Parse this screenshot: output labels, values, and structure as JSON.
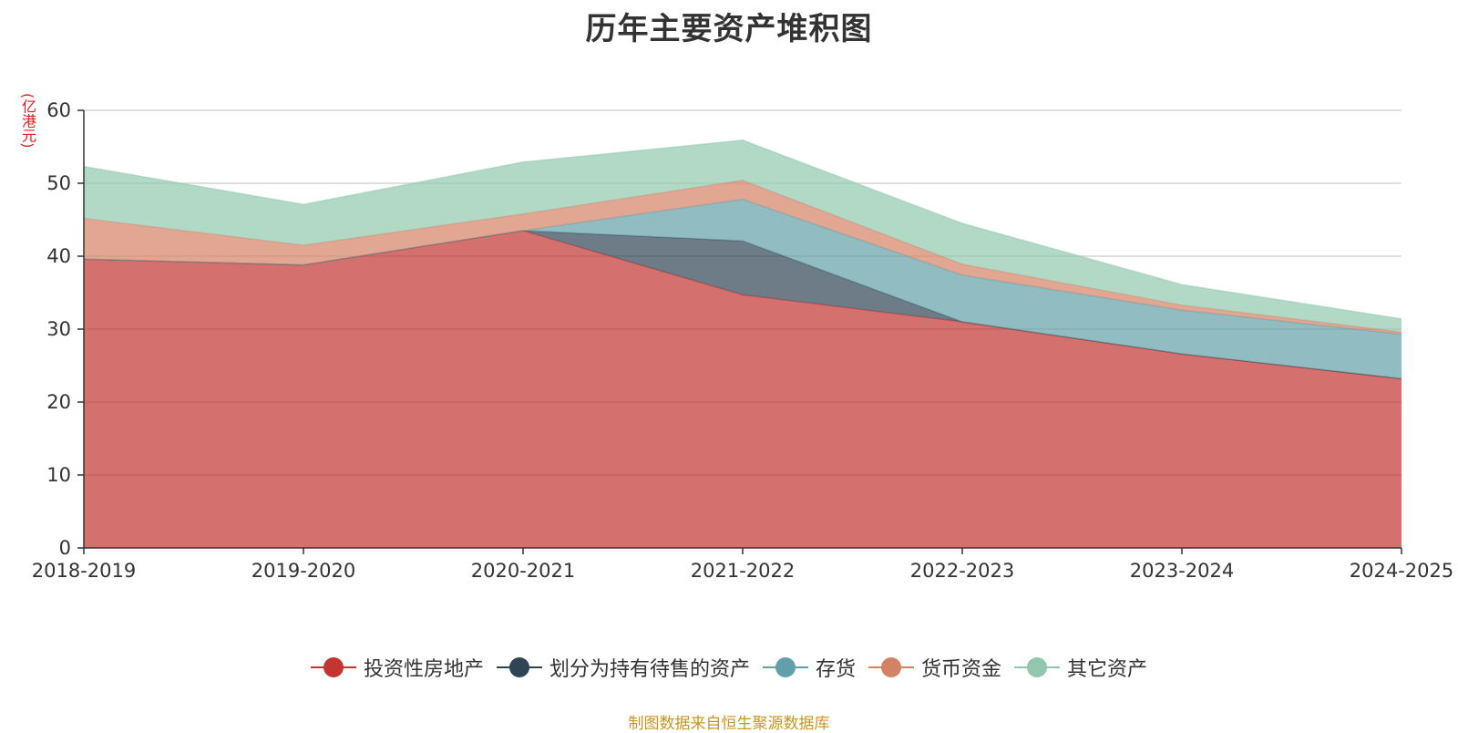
{
  "chart_data": {
    "type": "area",
    "stacked": true,
    "title": "历年主要资产堆积图",
    "ylabel": "(亿港元)",
    "ylim": [
      0,
      60
    ],
    "yticks": [
      0,
      10,
      20,
      30,
      40,
      50,
      60
    ],
    "grid": true,
    "legend_position": "bottom",
    "categories": [
      "2018-2019",
      "2019-2020",
      "2020-2021",
      "2021-2022",
      "2022-2023",
      "2023-2024",
      "2024-2025"
    ],
    "series": [
      {
        "name": "投资性房地产",
        "color": "#c23531",
        "values": [
          39.6,
          38.8,
          43.5,
          34.7,
          31.0,
          26.6,
          23.2
        ]
      },
      {
        "name": "划分为持有待售的资产",
        "color": "#2f4554",
        "values": [
          0,
          0,
          0,
          7.4,
          0,
          0,
          0
        ]
      },
      {
        "name": "存货",
        "color": "#61a0a8",
        "values": [
          0,
          0,
          0,
          5.7,
          6.4,
          6.0,
          6.1
        ]
      },
      {
        "name": "货币资金",
        "color": "#d48265",
        "values": [
          5.6,
          2.7,
          2.3,
          2.6,
          1.5,
          0.7,
          0.3
        ]
      },
      {
        "name": "其它资产",
        "color": "#91c7ae",
        "values": [
          7.1,
          5.6,
          7.1,
          5.5,
          5.6,
          2.8,
          1.8
        ]
      }
    ]
  },
  "source_note": "制图数据来自恒生聚源数据库"
}
